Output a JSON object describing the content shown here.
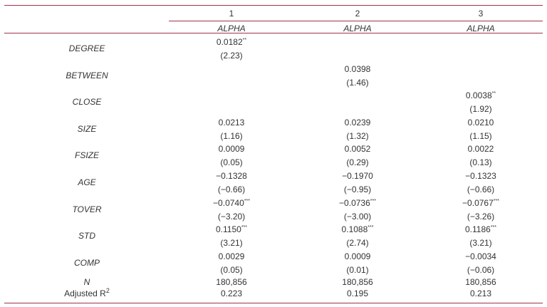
{
  "header": {
    "columns": [
      "1",
      "2",
      "3"
    ],
    "dependent": [
      "ALPHA",
      "ALPHA",
      "ALPHA"
    ]
  },
  "rows": [
    {
      "label": "DEGREE",
      "cells": [
        {
          "coef": "0.0182",
          "stars": "**",
          "t": "(2.23)"
        },
        null,
        null
      ]
    },
    {
      "label": "BETWEEN",
      "cells": [
        null,
        {
          "coef": "0.0398",
          "stars": "",
          "t": "(1.46)"
        },
        null
      ]
    },
    {
      "label": "CLOSE",
      "cells": [
        null,
        null,
        {
          "coef": "0.0038",
          "stars": "**",
          "t": "(1.92)"
        }
      ]
    },
    {
      "label": "SIZE",
      "cells": [
        {
          "coef": "0.0213",
          "stars": "",
          "t": "(1.16)"
        },
        {
          "coef": "0.0239",
          "stars": "",
          "t": "(1.32)"
        },
        {
          "coef": "0.0210",
          "stars": "",
          "t": "(1.15)"
        }
      ]
    },
    {
      "label": "FSIZE",
      "cells": [
        {
          "coef": "0.0009",
          "stars": "",
          "t": "(0.05)"
        },
        {
          "coef": "0.0052",
          "stars": "",
          "t": "(0.29)"
        },
        {
          "coef": "0.0022",
          "stars": "",
          "t": "(0.13)"
        }
      ]
    },
    {
      "label": "AGE",
      "cells": [
        {
          "coef": "−0.1328",
          "stars": "",
          "t": "(−0.66)"
        },
        {
          "coef": "−0.1970",
          "stars": "",
          "t": "(−0.95)"
        },
        {
          "coef": "−0.1323",
          "stars": "",
          "t": "(−0.66)"
        }
      ]
    },
    {
      "label": "TOVER",
      "cells": [
        {
          "coef": "−0.0740",
          "stars": "***",
          "t": "(−3.20)"
        },
        {
          "coef": "−0.0736",
          "stars": "***",
          "t": "(−3.00)"
        },
        {
          "coef": "−0.0767",
          "stars": "***",
          "t": "(−3.26)"
        }
      ]
    },
    {
      "label": "STD",
      "cells": [
        {
          "coef": "0.1150",
          "stars": "***",
          "t": "(3.21)"
        },
        {
          "coef": "0.1088",
          "stars": "***",
          "t": "(2.74)"
        },
        {
          "coef": "0.1186",
          "stars": "***",
          "t": "(3.21)"
        }
      ]
    },
    {
      "label": "COMP",
      "cells": [
        {
          "coef": "0.0029",
          "stars": "",
          "t": "(0.05)"
        },
        {
          "coef": "0.0009",
          "stars": "",
          "t": "(0.01)"
        },
        {
          "coef": "−0.0034",
          "stars": "",
          "t": "(−0.06)"
        }
      ]
    }
  ],
  "footer": [
    {
      "label": "N",
      "values": [
        "180,856",
        "180,856",
        "180,856"
      ]
    },
    {
      "label": "Adjusted R",
      "label_sup": "2",
      "values": [
        "0.223",
        "0.195",
        "0.213"
      ]
    }
  ]
}
